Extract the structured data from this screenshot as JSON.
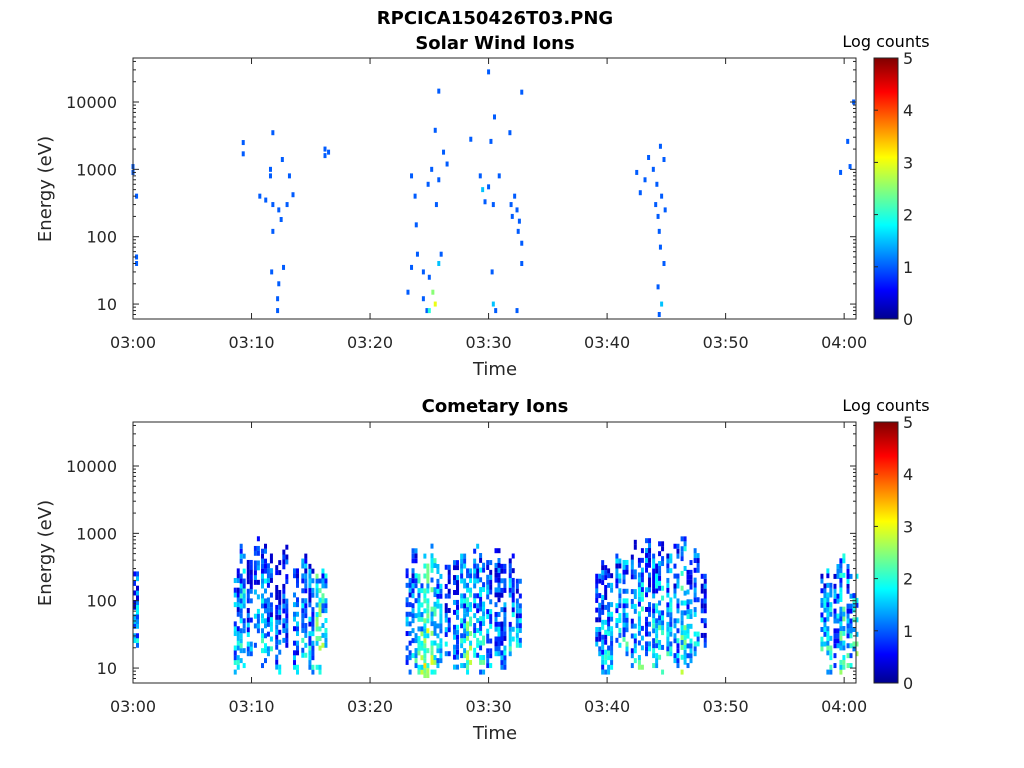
{
  "figure_title": "RPCICA150426T03.PNG",
  "chart_data": [
    {
      "type": "heatmap",
      "title": "Solar Wind Ions",
      "xlabel": "Time",
      "ylabel": "Energy (eV)",
      "x_ticks": [
        "03:00",
        "03:10",
        "03:20",
        "03:30",
        "03:40",
        "03:50",
        "04:00"
      ],
      "x_range_minutes": [
        0,
        61
      ],
      "y_ticks": [
        "10",
        "100",
        "1000",
        "10000"
      ],
      "y_tick_values": [
        10,
        100,
        1000,
        10000
      ],
      "y_scale": "log",
      "ylim": [
        6,
        45000
      ],
      "colorbar": {
        "label": "Log counts",
        "ticks": [
          "0",
          "1",
          "2",
          "3",
          "4",
          "5"
        ],
        "range": [
          0,
          5
        ],
        "colormap": "jet"
      },
      "pixels": [
        [
          0,
          1100,
          1
        ],
        [
          0,
          900,
          1
        ],
        [
          0.3,
          400,
          1
        ],
        [
          0.3,
          50,
          1
        ],
        [
          0.3,
          40,
          1
        ],
        [
          9.3,
          2500,
          1
        ],
        [
          9.3,
          1700,
          1
        ],
        [
          11.8,
          3500,
          1
        ],
        [
          11.6,
          1000,
          1
        ],
        [
          11.6,
          800,
          1
        ],
        [
          10.7,
          400,
          1
        ],
        [
          11.2,
          350,
          1
        ],
        [
          11.8,
          300,
          1
        ],
        [
          12.3,
          250,
          1
        ],
        [
          12.5,
          180,
          1
        ],
        [
          13.0,
          300,
          1
        ],
        [
          13.2,
          800,
          1
        ],
        [
          12.6,
          1400,
          1
        ],
        [
          13.5,
          420,
          1
        ],
        [
          11.8,
          120,
          1
        ],
        [
          11.7,
          30,
          1
        ],
        [
          12.3,
          20,
          1
        ],
        [
          12.2,
          12,
          1
        ],
        [
          12.2,
          8,
          1
        ],
        [
          12.7,
          35,
          1
        ],
        [
          16.2,
          2000,
          1
        ],
        [
          16.2,
          1600,
          1
        ],
        [
          16.5,
          1800,
          1
        ],
        [
          23.5,
          800,
          1
        ],
        [
          23.8,
          400,
          1
        ],
        [
          23.9,
          150,
          1
        ],
        [
          23.2,
          15,
          1
        ],
        [
          23.5,
          35,
          1
        ],
        [
          24.0,
          55,
          1
        ],
        [
          24.5,
          30,
          1
        ],
        [
          24.5,
          12,
          1
        ],
        [
          24.8,
          8,
          1
        ],
        [
          25.0,
          25,
          1
        ],
        [
          25.3,
          15,
          2.5
        ],
        [
          25.5,
          10,
          3
        ],
        [
          25.0,
          8,
          2
        ],
        [
          25.8,
          40,
          1.5
        ],
        [
          26.0,
          55,
          1
        ],
        [
          25.6,
          300,
          1
        ],
        [
          25.2,
          1000,
          1
        ],
        [
          25.8,
          700,
          1
        ],
        [
          25.5,
          3800,
          1
        ],
        [
          26.2,
          1800,
          1
        ],
        [
          26.5,
          1200,
          1
        ],
        [
          25.8,
          14500,
          1
        ],
        [
          24.9,
          600,
          1
        ],
        [
          28.5,
          2800,
          1
        ],
        [
          29.3,
          800,
          1
        ],
        [
          29.5,
          500,
          1.5
        ],
        [
          30.0,
          550,
          1
        ],
        [
          30.4,
          300,
          1
        ],
        [
          29.7,
          330,
          1
        ],
        [
          30.9,
          800,
          1
        ],
        [
          30.5,
          6000,
          1
        ],
        [
          30.2,
          2600,
          1
        ],
        [
          30.0,
          28000,
          1
        ],
        [
          31.8,
          3500,
          1
        ],
        [
          32.2,
          400,
          1
        ],
        [
          31.9,
          300,
          1
        ],
        [
          32.4,
          250,
          1
        ],
        [
          32.0,
          200,
          1
        ],
        [
          32.6,
          170,
          1
        ],
        [
          32.8,
          80,
          1
        ],
        [
          32.5,
          120,
          1
        ],
        [
          32.8,
          40,
          1
        ],
        [
          32.4,
          8,
          1
        ],
        [
          30.3,
          30,
          1
        ],
        [
          30.4,
          10,
          1.5
        ],
        [
          30.6,
          8,
          1
        ],
        [
          32.8,
          14000,
          1
        ],
        [
          42.5,
          900,
          1
        ],
        [
          42.8,
          450,
          1
        ],
        [
          43.2,
          700,
          1
        ],
        [
          43.5,
          1500,
          1
        ],
        [
          43.9,
          1000,
          1
        ],
        [
          44.2,
          600,
          1
        ],
        [
          44.5,
          2200,
          1
        ],
        [
          44.8,
          1400,
          1
        ],
        [
          44.1,
          300,
          1
        ],
        [
          44.6,
          400,
          1
        ],
        [
          44.3,
          200,
          1
        ],
        [
          44.9,
          250,
          1
        ],
        [
          44.4,
          120,
          1
        ],
        [
          44.5,
          70,
          1
        ],
        [
          44.8,
          40,
          1
        ],
        [
          44.3,
          18,
          1
        ],
        [
          44.6,
          10,
          1.5
        ],
        [
          44.4,
          7,
          1
        ],
        [
          59.7,
          900,
          1
        ],
        [
          60.3,
          2600,
          1
        ],
        [
          60.5,
          1100,
          1
        ],
        [
          60.8,
          10000,
          1
        ]
      ]
    },
    {
      "type": "heatmap",
      "title": "Cometary Ions",
      "xlabel": "Time",
      "ylabel": "Energy (eV)",
      "x_ticks": [
        "03:00",
        "03:10",
        "03:20",
        "03:30",
        "03:40",
        "03:50",
        "04:00"
      ],
      "x_range_minutes": [
        0,
        61
      ],
      "y_ticks": [
        "10",
        "100",
        "1000",
        "10000"
      ],
      "y_tick_values": [
        10,
        100,
        1000,
        10000
      ],
      "y_scale": "log",
      "ylim": [
        6,
        45000
      ],
      "colorbar": {
        "label": "Log counts",
        "ticks": [
          "0",
          "1",
          "2",
          "3",
          "4",
          "5"
        ],
        "range": [
          0,
          5
        ],
        "colormap": "jet"
      },
      "blocks": [
        [
          0,
          0.4,
          20,
          270,
          1.4
        ],
        [
          8.5,
          9.0,
          8,
          300,
          1.5
        ],
        [
          9.0,
          9.4,
          10,
          700,
          1.8
        ],
        [
          9.6,
          10.0,
          15,
          400,
          1.2
        ],
        [
          10.2,
          10.6,
          20,
          900,
          1.3
        ],
        [
          10.8,
          11.2,
          10,
          700,
          1.6
        ],
        [
          11.3,
          11.8,
          15,
          500,
          1.4
        ],
        [
          12.0,
          12.4,
          8,
          400,
          1.1
        ],
        [
          12.6,
          13.0,
          20,
          800,
          1.2
        ],
        [
          13.5,
          14.0,
          8,
          300,
          1.3
        ],
        [
          14.2,
          14.6,
          12,
          500,
          1.5
        ],
        [
          14.8,
          15.3,
          8,
          350,
          1.5
        ],
        [
          15.4,
          15.8,
          8,
          250,
          2.4
        ],
        [
          15.9,
          16.3,
          20,
          300,
          2.0
        ],
        [
          23.0,
          23.4,
          8,
          300,
          1.5
        ],
        [
          23.5,
          23.9,
          10,
          600,
          1.6
        ],
        [
          24.0,
          24.4,
          8,
          250,
          2.1
        ],
        [
          24.5,
          25.0,
          6,
          500,
          2.6
        ],
        [
          25.1,
          25.5,
          8,
          700,
          2.2
        ],
        [
          25.6,
          26.0,
          10,
          350,
          1.8
        ],
        [
          26.3,
          26.8,
          15,
          400,
          1.2
        ],
        [
          27.0,
          27.4,
          8,
          400,
          1.4
        ],
        [
          27.6,
          28.0,
          10,
          500,
          1.6
        ],
        [
          28.1,
          28.6,
          8,
          300,
          2.3
        ],
        [
          28.7,
          29.1,
          12,
          700,
          1.5
        ],
        [
          29.2,
          29.6,
          8,
          600,
          1.7
        ],
        [
          29.8,
          30.2,
          10,
          400,
          1.4
        ],
        [
          30.5,
          30.9,
          15,
          600,
          1.2
        ],
        [
          31.0,
          31.5,
          8,
          350,
          1.3
        ],
        [
          31.7,
          32.2,
          15,
          500,
          1.5
        ],
        [
          32.3,
          32.8,
          20,
          250,
          1.3
        ],
        [
          39.0,
          39.4,
          15,
          250,
          1.3
        ],
        [
          39.5,
          39.9,
          8,
          400,
          1.4
        ],
        [
          40.0,
          40.5,
          8,
          300,
          1.5
        ],
        [
          40.7,
          41.1,
          20,
          500,
          1.6
        ],
        [
          41.3,
          41.8,
          15,
          400,
          1.7
        ],
        [
          42.0,
          42.4,
          10,
          800,
          1.3
        ],
        [
          42.6,
          43.0,
          8,
          600,
          1.8
        ],
        [
          43.2,
          43.6,
          15,
          1000,
          1.4
        ],
        [
          43.8,
          44.2,
          10,
          500,
          1.7
        ],
        [
          44.3,
          44.8,
          8,
          900,
          1.8
        ],
        [
          45.0,
          45.5,
          15,
          500,
          1.6
        ],
        [
          45.6,
          46.0,
          10,
          700,
          1.4
        ],
        [
          46.2,
          46.6,
          8,
          900,
          2.0
        ],
        [
          46.7,
          47.2,
          10,
          400,
          1.7
        ],
        [
          47.3,
          47.8,
          15,
          600,
          1.4
        ],
        [
          47.9,
          48.4,
          20,
          250,
          1.2
        ],
        [
          58.0,
          58.4,
          15,
          250,
          1.6
        ],
        [
          58.5,
          59.0,
          8,
          300,
          1.8
        ],
        [
          59.1,
          59.5,
          10,
          350,
          1.5
        ],
        [
          59.6,
          60.1,
          8,
          500,
          2.0
        ],
        [
          60.2,
          60.6,
          10,
          350,
          1.7
        ],
        [
          60.7,
          61.0,
          15,
          250,
          1.9
        ]
      ]
    }
  ]
}
